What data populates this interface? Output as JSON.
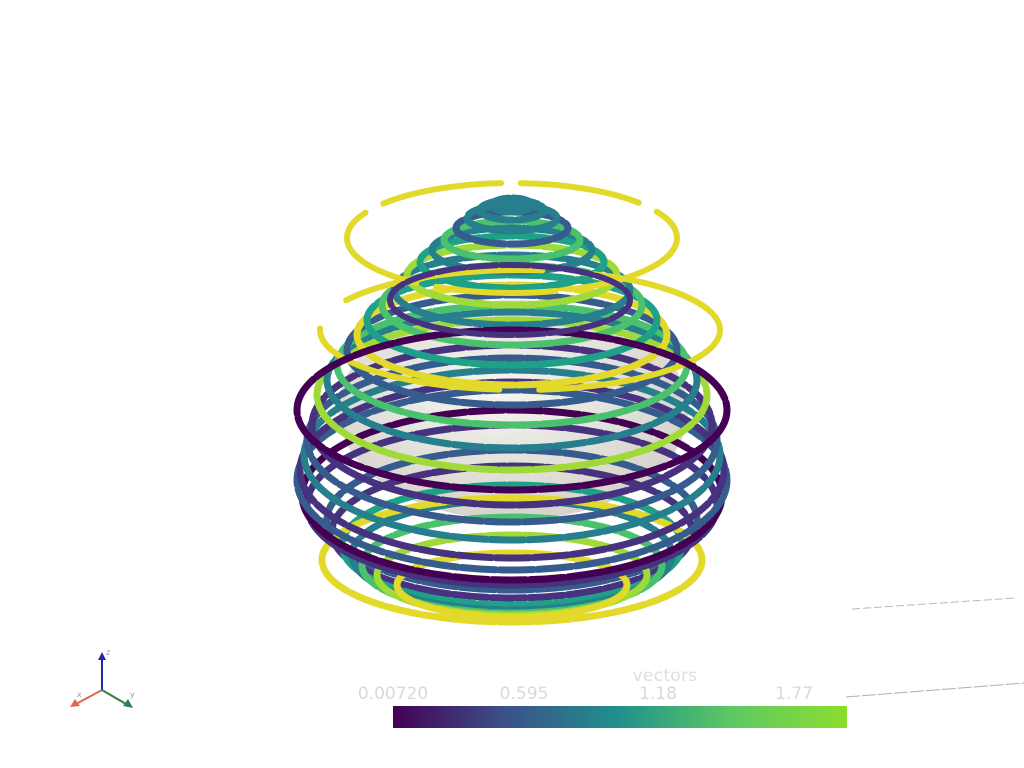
{
  "scalar_bar": {
    "title": "vectors",
    "ticks": [
      "0.00720",
      "0.595",
      "1.18",
      "1.77"
    ],
    "colormap": [
      "#440154",
      "#3b528b",
      "#21918c",
      "#5ec962",
      "#8ddd2f"
    ]
  },
  "axes_widget": {
    "x_label": "x",
    "y_label": "y",
    "z_label": "z"
  },
  "colors": {
    "sphere": "#ebe9e4",
    "low": "#440154",
    "mid": "#21918c",
    "high": "#fde725"
  }
}
